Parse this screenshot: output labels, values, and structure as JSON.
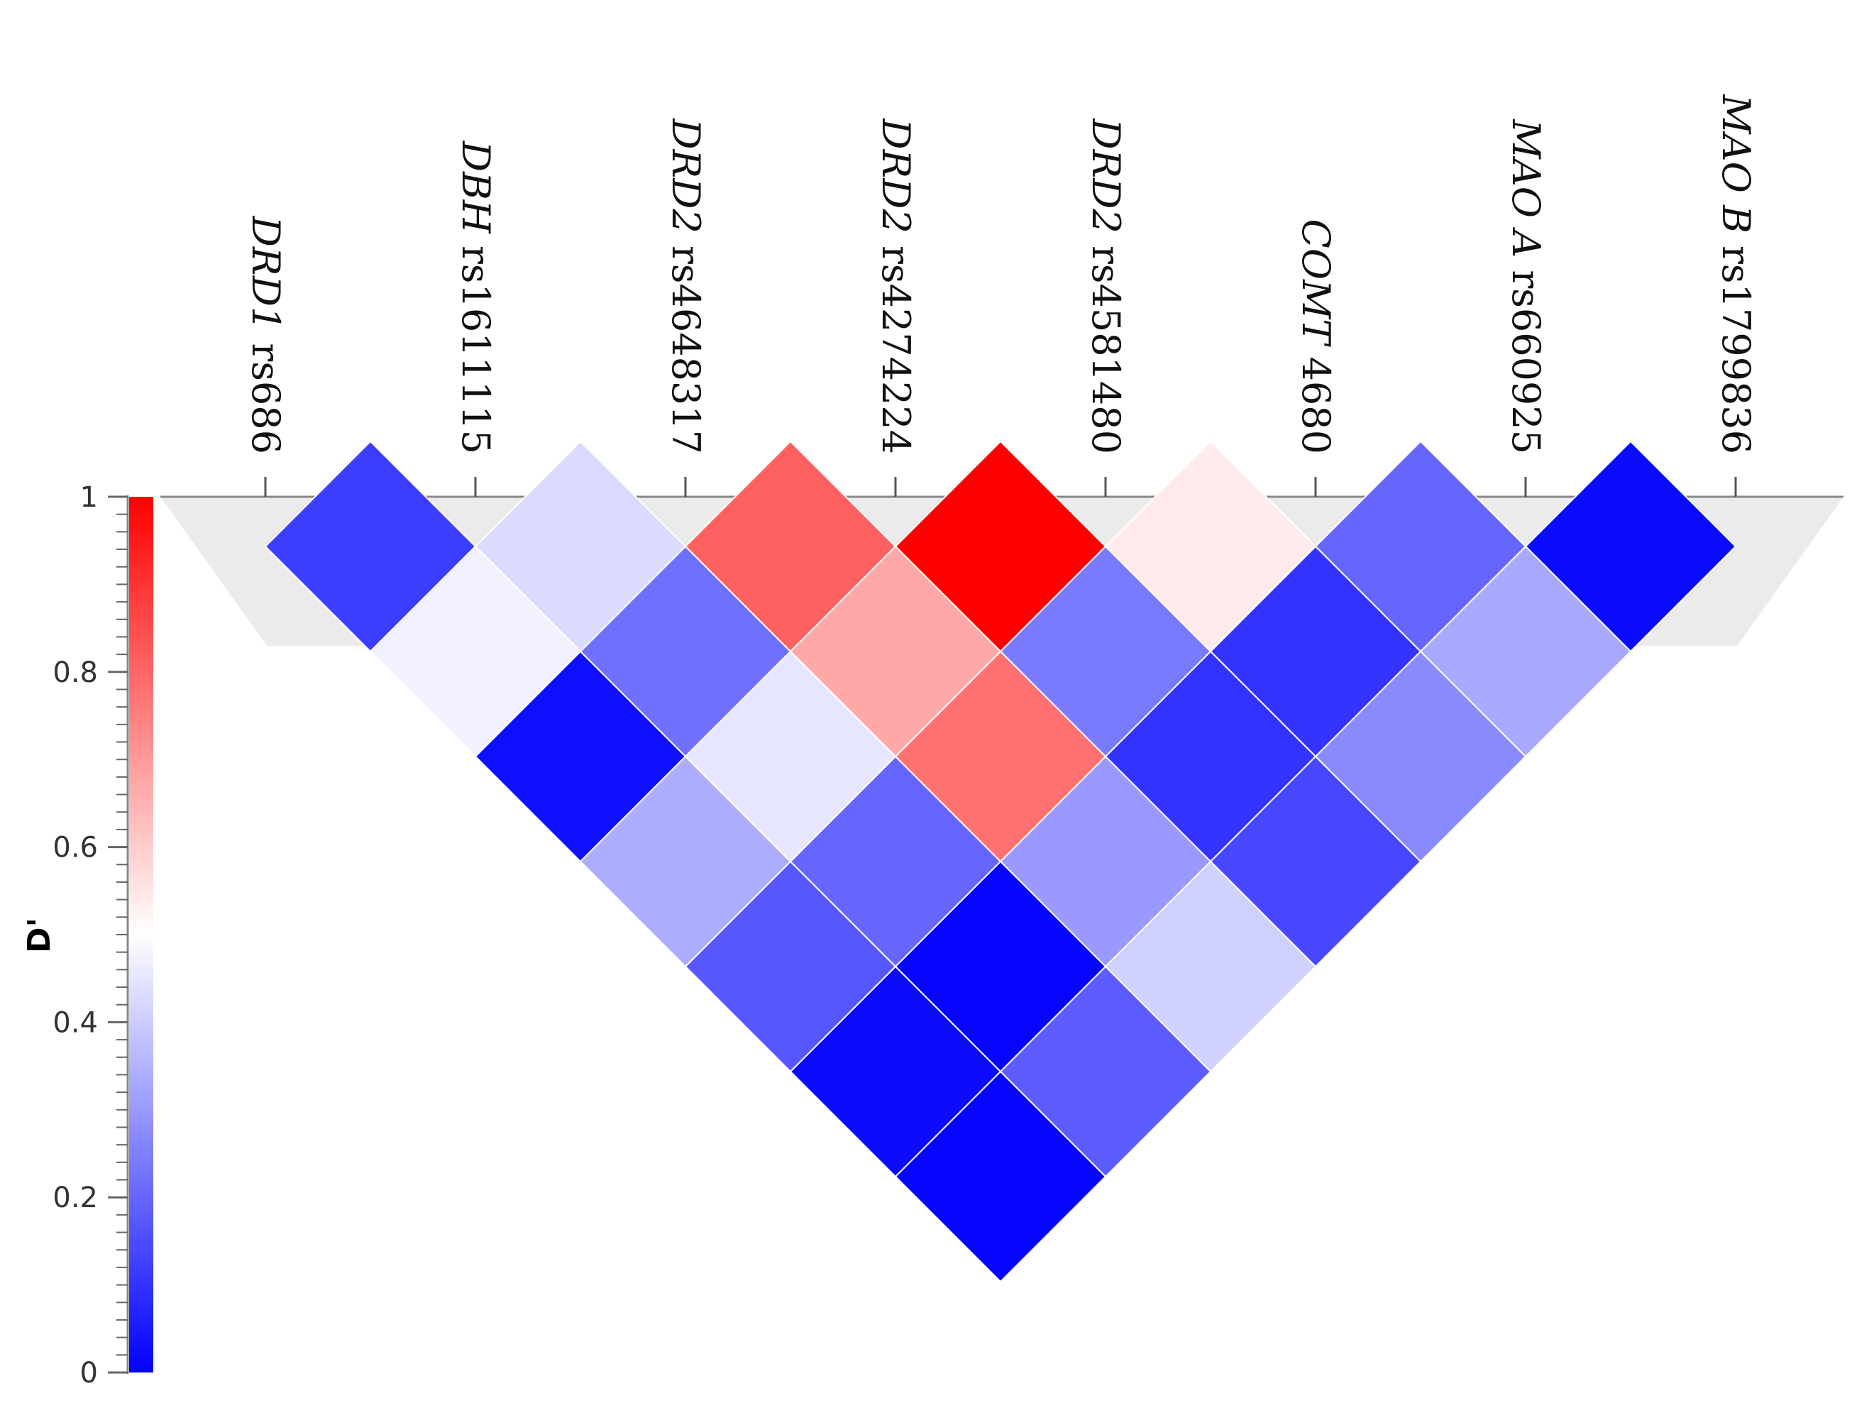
{
  "chart_data": {
    "type": "heatmap",
    "title": "",
    "snps": [
      {
        "gene": "DRD1",
        "rs": "rs686"
      },
      {
        "gene": "DBH",
        "rs": "rs1611115"
      },
      {
        "gene": "DRD2",
        "rs": "rs4648317"
      },
      {
        "gene": "DRD2",
        "rs": "rs4274224"
      },
      {
        "gene": "DRD2",
        "rs": "rs4581480"
      },
      {
        "gene": "COMT",
        "rs": "4680"
      },
      {
        "gene": "MAO A",
        "rs": "rs660925"
      },
      {
        "gene": "MAO B",
        "rs": "rs1799836"
      }
    ],
    "colorbar": {
      "label": "D'",
      "min": 0,
      "max": 1,
      "ticks": [
        "0",
        "0.2",
        "0.4",
        "0.6",
        "0.8",
        "1"
      ],
      "low_color": "#0000ff",
      "mid_color": "#ffffff",
      "high_color": "#ff0000"
    },
    "cells": [
      {
        "i": 0,
        "j": 1,
        "value": 0.12
      },
      {
        "i": 1,
        "j": 2,
        "value": 0.43
      },
      {
        "i": 2,
        "j": 3,
        "value": 0.81
      },
      {
        "i": 3,
        "j": 4,
        "value": 1.0
      },
      {
        "i": 4,
        "j": 5,
        "value": 0.54
      },
      {
        "i": 5,
        "j": 6,
        "value": 0.2
      },
      {
        "i": 6,
        "j": 7,
        "value": 0.02
      },
      {
        "i": 0,
        "j": 2,
        "value": 0.47
      },
      {
        "i": 1,
        "j": 3,
        "value": 0.22
      },
      {
        "i": 2,
        "j": 4,
        "value": 0.67
      },
      {
        "i": 3,
        "j": 5,
        "value": 0.24
      },
      {
        "i": 4,
        "j": 6,
        "value": 0.1
      },
      {
        "i": 5,
        "j": 7,
        "value": 0.33
      },
      {
        "i": 0,
        "j": 3,
        "value": 0.03
      },
      {
        "i": 1,
        "j": 4,
        "value": 0.45
      },
      {
        "i": 2,
        "j": 5,
        "value": 0.78
      },
      {
        "i": 3,
        "j": 6,
        "value": 0.1
      },
      {
        "i": 4,
        "j": 7,
        "value": 0.27
      },
      {
        "i": 0,
        "j": 4,
        "value": 0.34
      },
      {
        "i": 1,
        "j": 5,
        "value": 0.2
      },
      {
        "i": 2,
        "j": 6,
        "value": 0.3
      },
      {
        "i": 3,
        "j": 7,
        "value": 0.14
      },
      {
        "i": 0,
        "j": 5,
        "value": 0.17
      },
      {
        "i": 1,
        "j": 6,
        "value": 0.01
      },
      {
        "i": 2,
        "j": 7,
        "value": 0.41
      },
      {
        "i": 0,
        "j": 6,
        "value": 0.02
      },
      {
        "i": 1,
        "j": 7,
        "value": 0.18
      },
      {
        "i": 0,
        "j": 7,
        "value": 0.01
      }
    ]
  }
}
